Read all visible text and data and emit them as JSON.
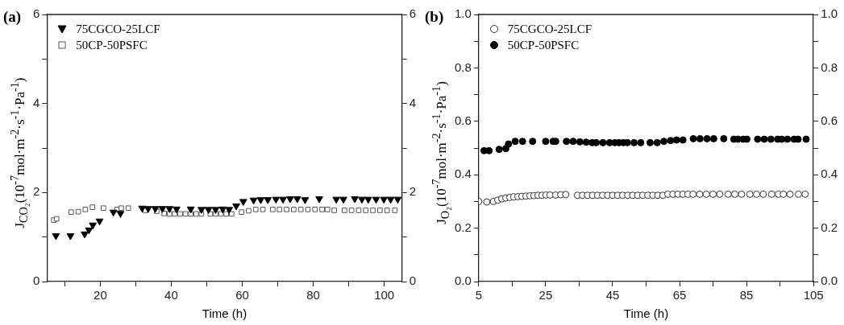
{
  "chart_data": [
    {
      "type": "scatter",
      "title": "(a)",
      "xlabel": "Time (h)",
      "ylabel": "J$_{CO₂}$(10$^{-7}$mol·m$^{-2}$·s$^{-1}$·Pa$^{-1}$)",
      "xlim": [
        5,
        105
      ],
      "xticks": [
        {
          "value": 10,
          "label": null
        },
        20,
        {
          "value": 30,
          "label": null
        },
        40,
        {
          "value": 50,
          "label": null
        },
        60,
        {
          "value": 70,
          "label": null
        },
        80,
        {
          "value": 90,
          "label": null
        },
        100
      ],
      "ylim": [
        0,
        6
      ],
      "yticks": [
        0,
        {
          "value": 1,
          "label": null
        },
        2,
        {
          "value": 3,
          "label": null
        },
        4,
        {
          "value": 5,
          "label": null
        },
        6
      ],
      "y2lim": [
        0,
        6
      ],
      "y2ticks": [
        0,
        {
          "value": 1,
          "label": null
        },
        2,
        {
          "value": 3,
          "label": null
        },
        4,
        {
          "value": 5,
          "label": null
        },
        6
      ],
      "grid": false,
      "legend": "top left",
      "series": [
        {
          "name": "75CGCO-25LCF",
          "color": "#000000",
          "marker": "triangle",
          "x": [
            7.5,
            11.6,
            15.6,
            16.8,
            17.9,
            19.8,
            23.7,
            25.7,
            31.8,
            33.5,
            35.5,
            37.5,
            39.5,
            41.5,
            45.5,
            48.5,
            50.5,
            52.5,
            54.5,
            56.3,
            58.3,
            60.3,
            63.2,
            65.2,
            67.2,
            69.5,
            71.5,
            73.5,
            75.5,
            77.7,
            81.7,
            86.5,
            88.5,
            91.7,
            93.7,
            95.5,
            97.7,
            99.9,
            101.8,
            103.8
          ],
          "values": [
            1.03,
            1.03,
            1.07,
            1.16,
            1.27,
            1.36,
            1.56,
            1.53,
            1.65,
            1.64,
            1.64,
            1.64,
            1.64,
            1.63,
            1.63,
            1.62,
            1.62,
            1.62,
            1.63,
            1.62,
            1.7,
            1.8,
            1.83,
            1.84,
            1.84,
            1.85,
            1.85,
            1.86,
            1.86,
            1.84,
            1.86,
            1.85,
            1.85,
            1.86,
            1.85,
            1.85,
            1.85,
            1.85,
            1.85,
            1.85
          ]
        },
        {
          "name": "50CP-50PSFC",
          "color": "#555555",
          "marker": "square",
          "x": [
            6.9,
            7.7,
            11.8,
            13.8,
            15.8,
            17.8,
            20.9,
            24.7,
            25.9,
            27.9,
            32.7,
            35.9,
            38,
            39.5,
            41,
            42.5,
            44,
            45.5,
            47,
            48.5,
            51,
            52.5,
            54,
            55.5,
            57,
            59.8,
            61.8,
            63.8,
            65.8,
            68.6,
            70.5,
            72.5,
            74.5,
            76.5,
            78.5,
            80.5,
            82.5,
            84,
            85.9,
            88.8,
            90.8,
            92.8,
            94.8,
            96.8,
            98.8,
            100.8,
            103
          ],
          "values": [
            1.38,
            1.41,
            1.56,
            1.57,
            1.62,
            1.67,
            1.65,
            1.62,
            1.65,
            1.65,
            1.6,
            1.58,
            1.53,
            1.52,
            1.52,
            1.52,
            1.52,
            1.52,
            1.52,
            1.52,
            1.52,
            1.52,
            1.52,
            1.52,
            1.52,
            1.56,
            1.59,
            1.62,
            1.62,
            1.62,
            1.62,
            1.62,
            1.62,
            1.62,
            1.62,
            1.62,
            1.62,
            1.62,
            1.6,
            1.6,
            1.6,
            1.6,
            1.6,
            1.6,
            1.6,
            1.6,
            1.6
          ]
        }
      ]
    },
    {
      "type": "scatter",
      "title": "(b)",
      "xlabel": "Time (h)",
      "ylabel": "J$_{O₂}$(10$^{-7}$mol·m$^{-2}$·s$^{-1}$·Pa$^{-1}$)",
      "xlim": [
        5,
        105
      ],
      "xticks": [
        5,
        {
          "value": 15,
          "label": null
        },
        25,
        {
          "value": 35,
          "label": null
        },
        45,
        {
          "value": 55,
          "label": null
        },
        65,
        {
          "value": 75,
          "label": null
        },
        85,
        {
          "value": 95,
          "label": null
        },
        105
      ],
      "ylim": [
        0,
        1
      ],
      "yticks": [
        {
          "value": 0,
          "label": "0.0"
        },
        {
          "value": 0.1,
          "label": null
        },
        0.2,
        {
          "value": 0.3,
          "label": null
        },
        0.4,
        {
          "value": 0.5,
          "label": null
        },
        0.6,
        {
          "value": 0.7,
          "label": null
        },
        0.8,
        {
          "value": 0.9,
          "label": null
        },
        {
          "value": 1,
          "label": "1.0"
        }
      ],
      "y2lim": [
        0,
        1
      ],
      "y2ticks": [
        {
          "value": 0,
          "label": "0.0"
        },
        {
          "value": 0.1,
          "label": null
        },
        0.2,
        {
          "value": 0.3,
          "label": null
        },
        0.4,
        {
          "value": 0.5,
          "label": null
        },
        0.6,
        {
          "value": 0.7,
          "label": null
        },
        0.8,
        {
          "value": 0.9,
          "label": null
        },
        {
          "value": 1,
          "label": "1.0"
        }
      ],
      "grid": false,
      "legend": "top left",
      "series": [
        {
          "name": "75CGCO-25LCF",
          "color": "#333333",
          "marker": "circle",
          "x": [
            5,
            7.4,
            9.4,
            10.7,
            11.9,
            13.1,
            14.3,
            15.5,
            16.7,
            17.9,
            19.1,
            20.3,
            21.5,
            22.7,
            23.9,
            25.1,
            26.3,
            28,
            29.5,
            31,
            34.5,
            36,
            37.5,
            39,
            40.5,
            42,
            43.5,
            45,
            46.5,
            48,
            49.5,
            51,
            52.5,
            54,
            55.5,
            57,
            58.5,
            60,
            61.5,
            63,
            64.5,
            66,
            67.5,
            69,
            71,
            73,
            75,
            77,
            79.5,
            81.5,
            83.5,
            86,
            88,
            90,
            92.5,
            94.5,
            96,
            98,
            100.5,
            102.5
          ],
          "values": [
            0.3,
            0.298,
            0.3,
            0.305,
            0.31,
            0.313,
            0.315,
            0.317,
            0.318,
            0.319,
            0.32,
            0.321,
            0.322,
            0.323,
            0.323,
            0.324,
            0.324,
            0.324,
            0.325,
            0.326,
            0.323,
            0.323,
            0.323,
            0.323,
            0.323,
            0.323,
            0.323,
            0.323,
            0.323,
            0.323,
            0.323,
            0.323,
            0.323,
            0.323,
            0.323,
            0.323,
            0.323,
            0.323,
            0.327,
            0.327,
            0.327,
            0.327,
            0.327,
            0.327,
            0.327,
            0.327,
            0.327,
            0.327,
            0.327,
            0.327,
            0.327,
            0.327,
            0.327,
            0.327,
            0.327,
            0.327,
            0.327,
            0.327,
            0.327,
            0.327
          ]
        },
        {
          "name": "50CP-50PSFC",
          "color": "#000000",
          "marker": "circle",
          "x": [
            6.6,
            8.1,
            11.1,
            13.1,
            13.9,
            15.9,
            18.1,
            21.1,
            25,
            27.2,
            28,
            31.2,
            33.2,
            35.2,
            37.1,
            38.9,
            40.1,
            42.1,
            44.1,
            45.7,
            46.9,
            48.2,
            49.4,
            51.4,
            53.4,
            56.2,
            58.3,
            60.3,
            62.3,
            64.1,
            66,
            69.1,
            71.1,
            73.2,
            75.2,
            78.2,
            81.2,
            82.4,
            84,
            85.1,
            88.3,
            90.3,
            92.3,
            94.3,
            95.5,
            97.2,
            99.2,
            100.4,
            102.8
          ],
          "values": [
            0.49,
            0.49,
            0.495,
            0.498,
            0.515,
            0.525,
            0.525,
            0.525,
            0.525,
            0.525,
            0.525,
            0.525,
            0.525,
            0.523,
            0.522,
            0.52,
            0.52,
            0.52,
            0.52,
            0.52,
            0.52,
            0.52,
            0.52,
            0.52,
            0.52,
            0.52,
            0.52,
            0.525,
            0.528,
            0.53,
            0.53,
            0.535,
            0.535,
            0.535,
            0.535,
            0.535,
            0.533,
            0.533,
            0.533,
            0.533,
            0.533,
            0.533,
            0.533,
            0.533,
            0.533,
            0.533,
            0.533,
            0.533,
            0.533
          ]
        }
      ]
    }
  ]
}
